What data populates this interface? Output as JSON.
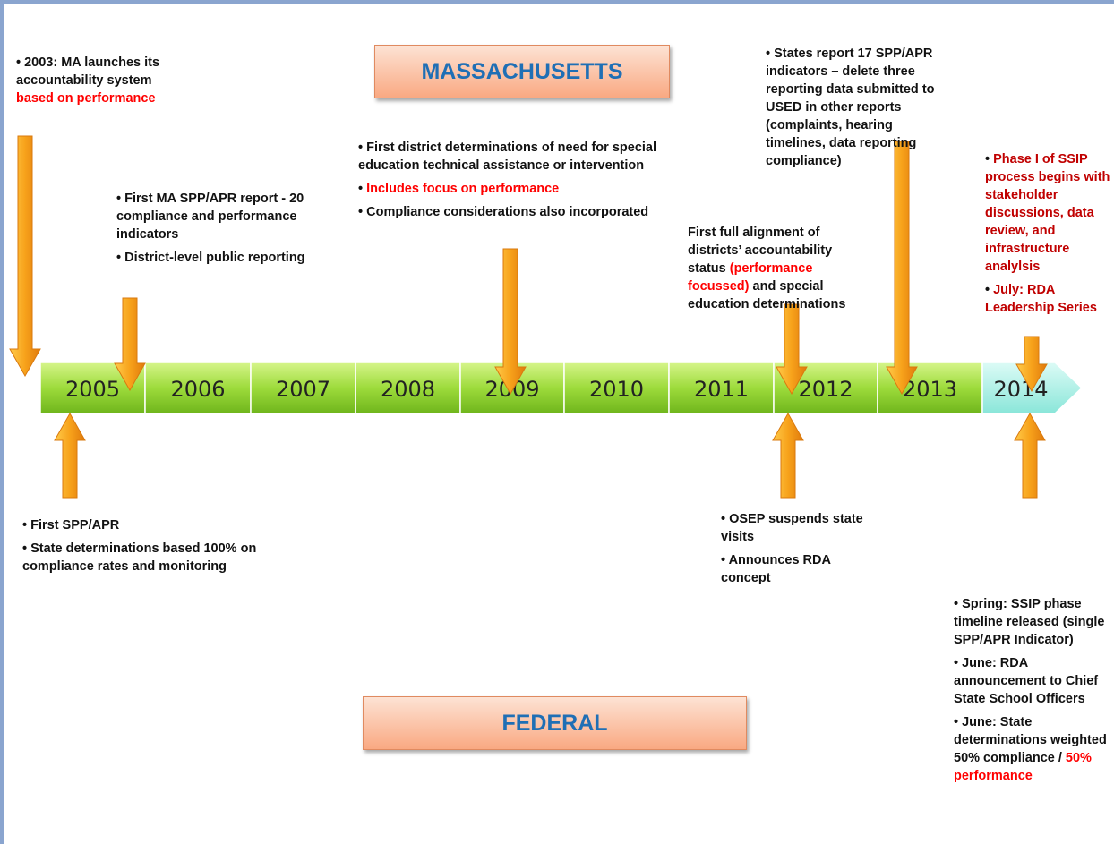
{
  "title_boxes": {
    "state": "MASSACHUSETTS",
    "federal": "FEDERAL"
  },
  "years": [
    "2005",
    "2006",
    "2007",
    "2008",
    "2009",
    "2010",
    "2011",
    "2012",
    "2013",
    "2014"
  ],
  "state_events": [
    {
      "bullets": [
        [
          "2003: MA launches its accountability system ",
          {
            "text": "based on performance",
            "color": "#ff0000"
          }
        ]
      ]
    },
    {
      "bullets": [
        [
          "First MA SPP/APR report - 20 compliance and performance indicators"
        ],
        [
          "District-level public reporting"
        ]
      ]
    },
    {
      "bullets": [
        [
          "First district determinations of need for special education technical assistance or intervention"
        ],
        [
          {
            "text": "Includes focus on performance",
            "color": "#ff0000"
          }
        ],
        [
          "Compliance considerations also incorporated"
        ]
      ]
    },
    {
      "paragraph": [
        "First full alignment of districts’ accountability status ",
        {
          "text": "(performance focussed)",
          "color": "#ff0000"
        },
        " and special education determinations"
      ]
    },
    {
      "bullets": [
        [
          "States report 17 SPP/APR indicators – delete three reporting data submitted to USED in other reports (complaints, hearing timelines, data reporting compliance)"
        ]
      ]
    },
    {
      "bullets": [
        [
          {
            "text": "Phase I of SSIP process begins with stakeholder discussions, data review, and infrastructure analylsis",
            "color": "#c00000"
          }
        ],
        [
          {
            "text": "July: RDA Leadership Series",
            "color": "#c00000"
          }
        ]
      ]
    }
  ],
  "federal_events": [
    {
      "bullets": [
        [
          "First SPP/APR"
        ],
        [
          "State determinations based 100% on compliance rates and monitoring"
        ]
      ]
    },
    {
      "bullets": [
        [
          "OSEP suspends state visits"
        ],
        [
          "Announces RDA concept"
        ]
      ]
    },
    {
      "bullets": [
        [
          "Spring: SSIP  phase timeline released (single SPP/APR Indicator)"
        ],
        [
          "June: RDA announcement to Chief State School Officers"
        ],
        [
          "June: State determinations weighted 50% compliance / ",
          {
            "text": "50% performance",
            "color": "#ff0000"
          }
        ]
      ]
    }
  ]
}
